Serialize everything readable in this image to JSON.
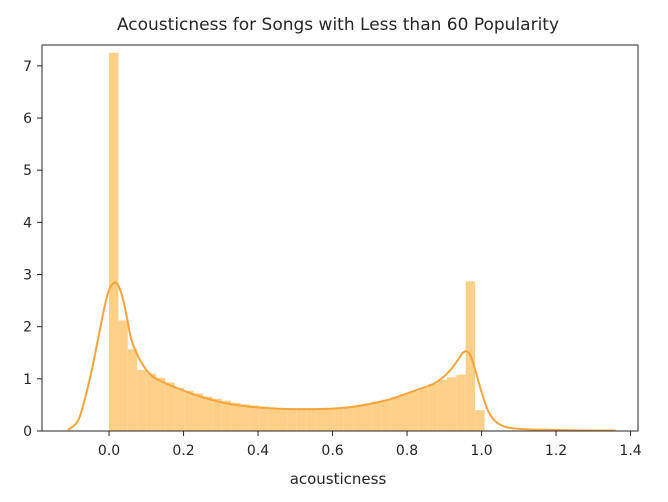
{
  "chart_data": {
    "type": "bar",
    "title": "Acousticness for Songs with Less than 60 Popularity",
    "xlabel": "acousticness",
    "ylabel": "",
    "xlim": [
      -0.18,
      1.42
    ],
    "ylim": [
      0,
      7.4
    ],
    "xticks": [
      0.0,
      0.2,
      0.4,
      0.6,
      0.8,
      1.0,
      1.2,
      1.4
    ],
    "xtick_labels": [
      "0.0",
      "0.2",
      "0.4",
      "0.6",
      "0.8",
      "1.0",
      "1.2",
      "1.4"
    ],
    "yticks": [
      0,
      1,
      2,
      3,
      4,
      5,
      6,
      7
    ],
    "ytick_labels": [
      "0",
      "1",
      "2",
      "3",
      "4",
      "5",
      "6",
      "7"
    ],
    "grid": false,
    "histogram": {
      "color": "#fdd08a",
      "bin_width": 0.0252,
      "bins": [
        {
          "x0": 0.0,
          "value": 7.25
        },
        {
          "x0": 0.0252,
          "value": 2.12
        },
        {
          "x0": 0.0504,
          "value": 1.57
        },
        {
          "x0": 0.0756,
          "value": 1.17
        },
        {
          "x0": 0.1008,
          "value": 1.1
        },
        {
          "x0": 0.126,
          "value": 1.02
        },
        {
          "x0": 0.1512,
          "value": 0.93
        },
        {
          "x0": 0.1764,
          "value": 0.83
        },
        {
          "x0": 0.2016,
          "value": 0.77
        },
        {
          "x0": 0.2268,
          "value": 0.72
        },
        {
          "x0": 0.252,
          "value": 0.66
        },
        {
          "x0": 0.2772,
          "value": 0.62
        },
        {
          "x0": 0.3024,
          "value": 0.58
        },
        {
          "x0": 0.3276,
          "value": 0.54
        },
        {
          "x0": 0.3528,
          "value": 0.51
        },
        {
          "x0": 0.378,
          "value": 0.49
        },
        {
          "x0": 0.4032,
          "value": 0.47
        },
        {
          "x0": 0.4284,
          "value": 0.45
        },
        {
          "x0": 0.4536,
          "value": 0.44
        },
        {
          "x0": 0.4788,
          "value": 0.43
        },
        {
          "x0": 0.504,
          "value": 0.43
        },
        {
          "x0": 0.5292,
          "value": 0.42
        },
        {
          "x0": 0.5544,
          "value": 0.43
        },
        {
          "x0": 0.5796,
          "value": 0.43
        },
        {
          "x0": 0.6048,
          "value": 0.44
        },
        {
          "x0": 0.63,
          "value": 0.46
        },
        {
          "x0": 0.6552,
          "value": 0.49
        },
        {
          "x0": 0.6804,
          "value": 0.52
        },
        {
          "x0": 0.7056,
          "value": 0.56
        },
        {
          "x0": 0.7308,
          "value": 0.6
        },
        {
          "x0": 0.756,
          "value": 0.65
        },
        {
          "x0": 0.7812,
          "value": 0.71
        },
        {
          "x0": 0.8064,
          "value": 0.76
        },
        {
          "x0": 0.8316,
          "value": 0.82
        },
        {
          "x0": 0.8568,
          "value": 0.9
        },
        {
          "x0": 0.882,
          "value": 0.98
        },
        {
          "x0": 0.9072,
          "value": 1.03
        },
        {
          "x0": 0.9324,
          "value": 1.08
        },
        {
          "x0": 0.9576,
          "value": 2.87
        },
        {
          "x0": 0.9828,
          "value": 0.4
        }
      ]
    },
    "kde": {
      "color": "#f7a43b",
      "x": [
        -0.11,
        -0.08,
        -0.05,
        -0.03,
        -0.01,
        0.0,
        0.01,
        0.02,
        0.03,
        0.04,
        0.05,
        0.06,
        0.08,
        0.1,
        0.12,
        0.15,
        0.18,
        0.22,
        0.26,
        0.3,
        0.35,
        0.4,
        0.45,
        0.5,
        0.55,
        0.6,
        0.65,
        0.7,
        0.75,
        0.8,
        0.84,
        0.87,
        0.9,
        0.92,
        0.94,
        0.95,
        0.96,
        0.97,
        0.98,
        1.0,
        1.02,
        1.05,
        1.1,
        1.2,
        1.3,
        1.36
      ],
      "y": [
        0.02,
        0.25,
        1.05,
        1.75,
        2.45,
        2.7,
        2.82,
        2.84,
        2.7,
        2.45,
        2.1,
        1.75,
        1.4,
        1.17,
        1.03,
        0.92,
        0.83,
        0.72,
        0.63,
        0.55,
        0.49,
        0.45,
        0.43,
        0.42,
        0.42,
        0.43,
        0.46,
        0.52,
        0.6,
        0.72,
        0.82,
        0.9,
        1.05,
        1.2,
        1.4,
        1.5,
        1.53,
        1.45,
        1.25,
        0.75,
        0.35,
        0.12,
        0.04,
        0.02,
        0.01,
        0.01
      ]
    }
  }
}
